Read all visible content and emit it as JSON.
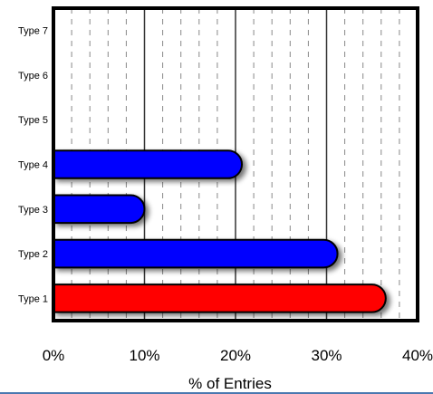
{
  "chart_data": {
    "type": "bar",
    "orientation": "horizontal",
    "categories": [
      "Type 1",
      "Type 2",
      "Type 3",
      "Type 4",
      "Type 5",
      "Type 6",
      "Type 7"
    ],
    "values": [
      36.5,
      31.2,
      10.0,
      20.7,
      0,
      0,
      0
    ],
    "bar_colors": [
      "#ff0000",
      "#0000ff",
      "#0000ff",
      "#0000ff",
      "#0000ff",
      "#0000ff",
      "#0000ff"
    ],
    "title": "",
    "xlabel": "% of Entries",
    "ylabel": "",
    "xlim": [
      0,
      40
    ],
    "x_ticks": [
      0,
      10,
      20,
      30,
      40
    ],
    "x_tick_labels": [
      "0%",
      "10%",
      "20%",
      "30%",
      "40%"
    ],
    "grid": {
      "major": true,
      "minor_dashed": true
    },
    "legend": "none"
  }
}
